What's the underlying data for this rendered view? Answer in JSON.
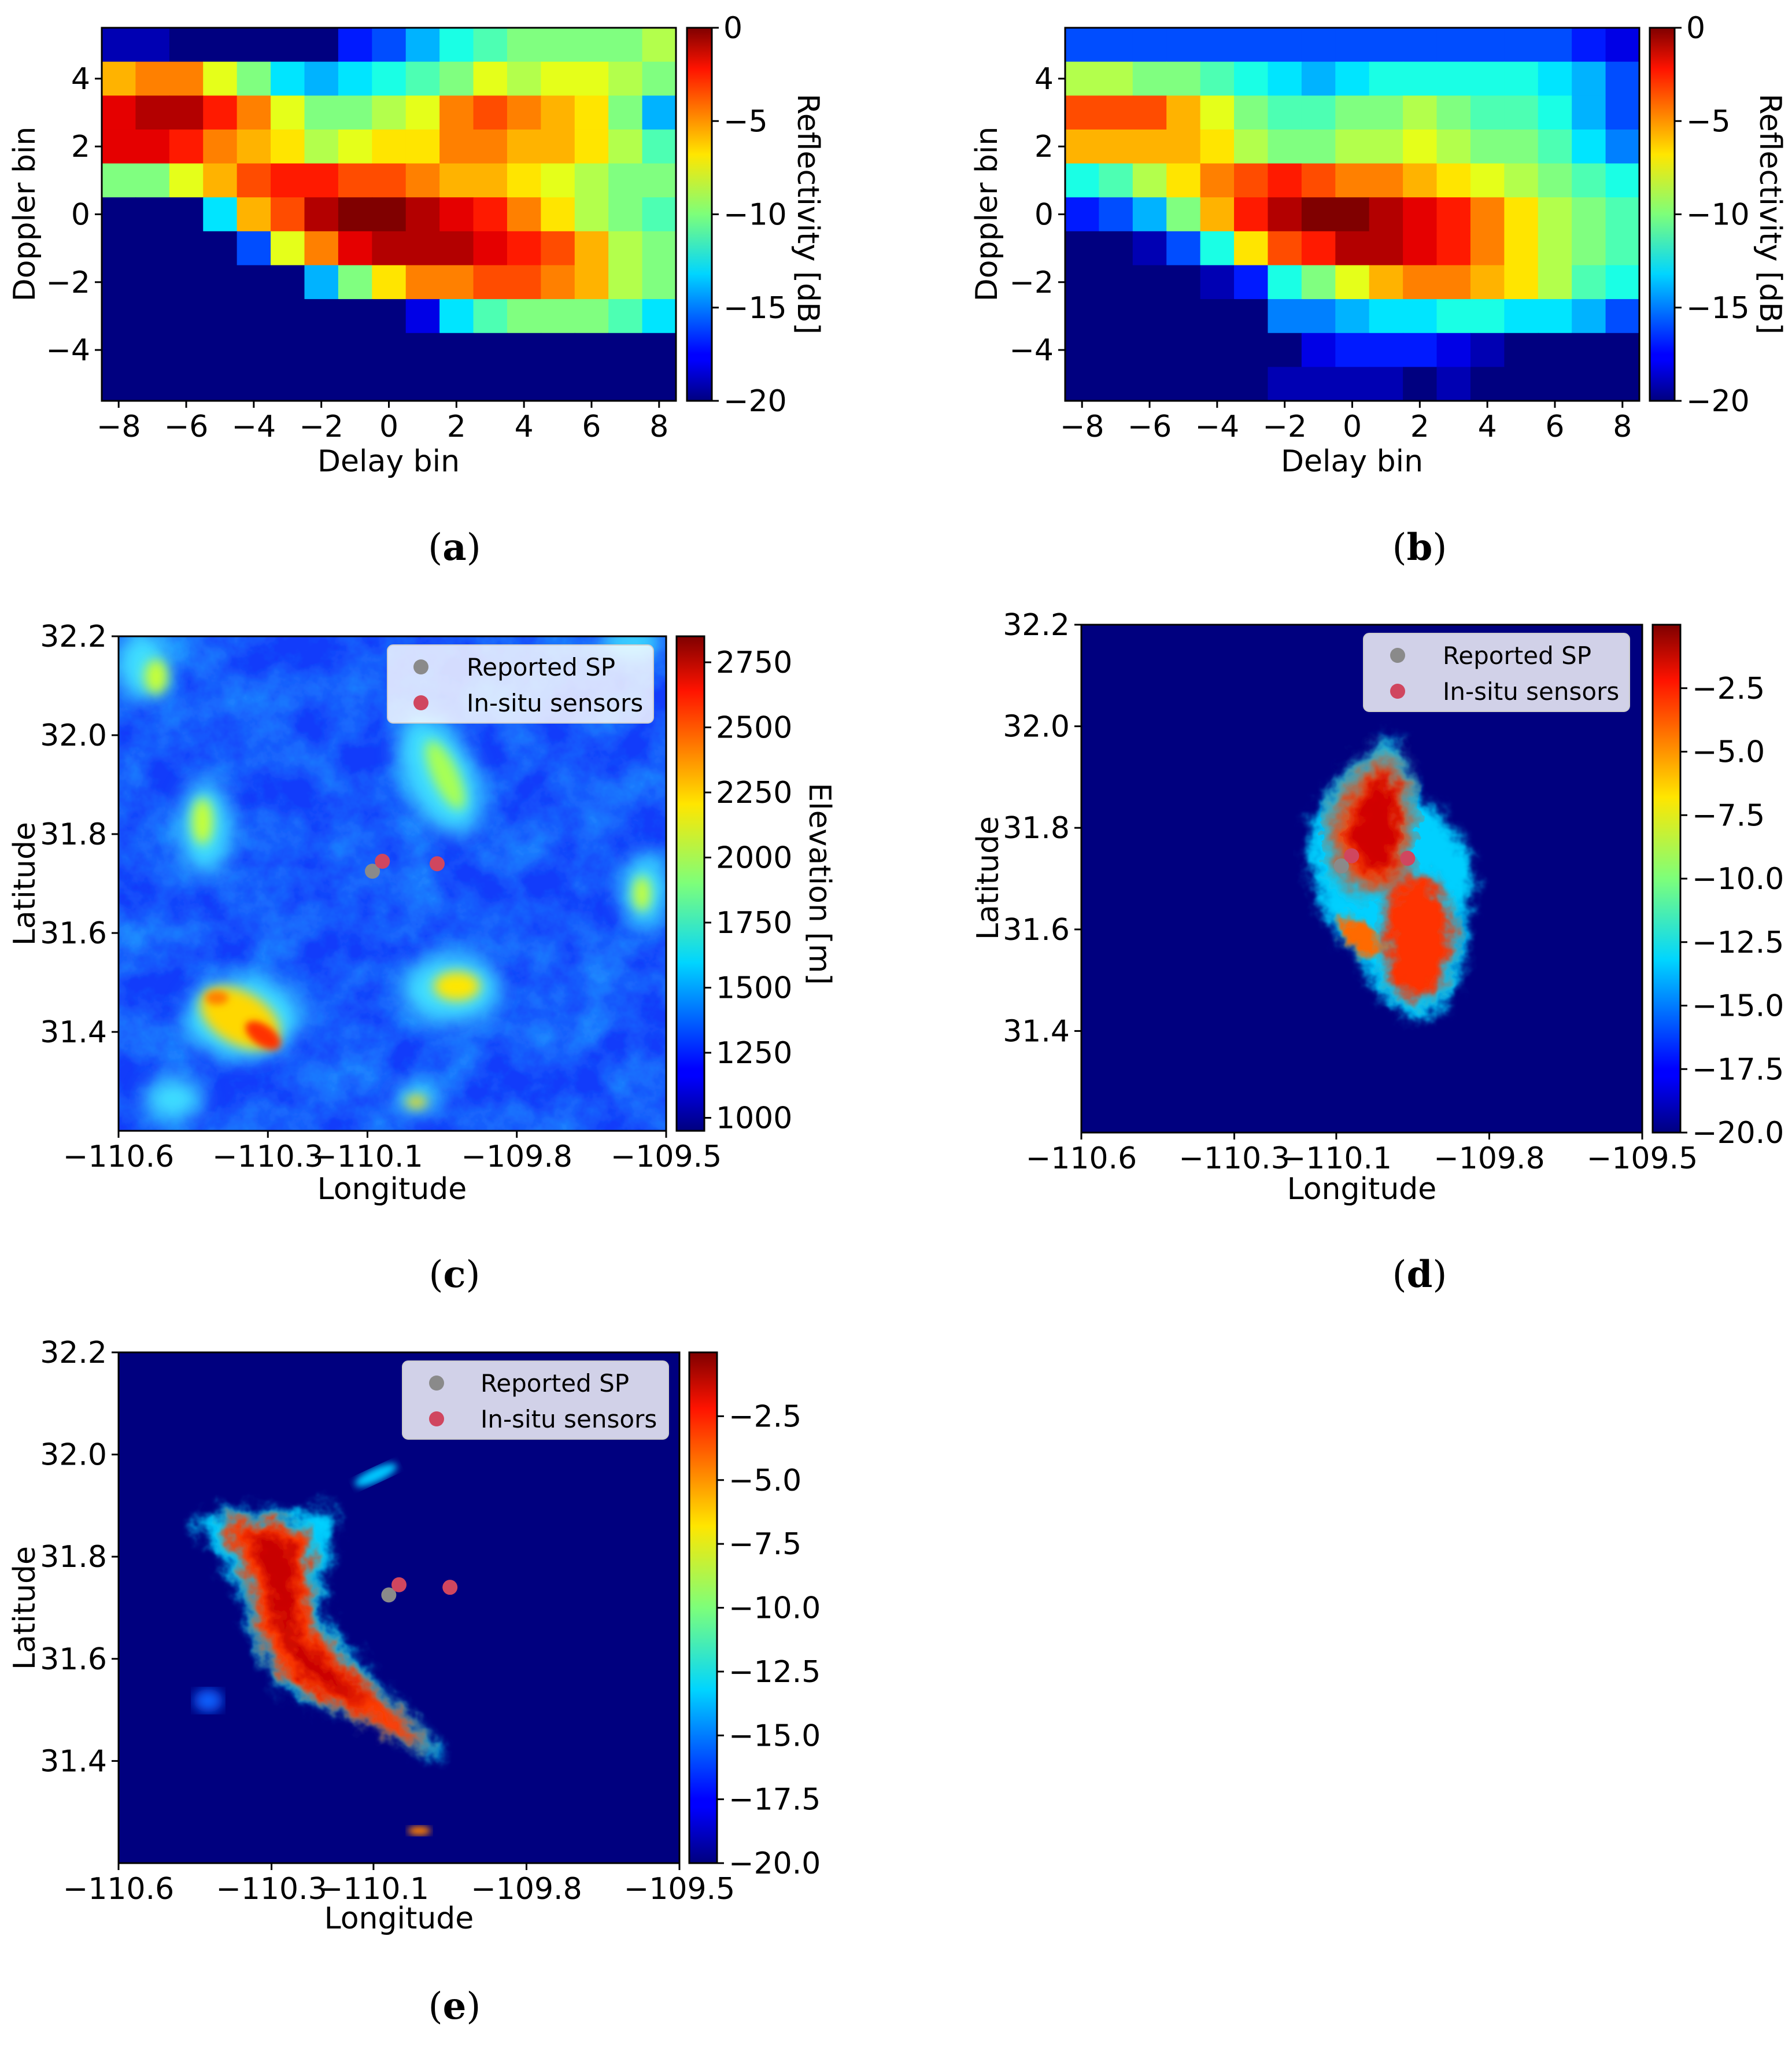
{
  "panels": {
    "a": {
      "label_open": "(",
      "label_letter": "a",
      "label_close": ")"
    },
    "b": {
      "label_open": "(",
      "label_letter": "b",
      "label_close": ")"
    },
    "c": {
      "label_open": "(",
      "label_letter": "c",
      "label_close": ")"
    },
    "d": {
      "label_open": "(",
      "label_letter": "d",
      "label_close": ")"
    },
    "e": {
      "label_open": "(",
      "label_letter": "e",
      "label_close": ")"
    }
  },
  "legend": {
    "reported_sp": "Reported SP",
    "insitu": "In-situ sensors"
  },
  "colors": {
    "reported_sp": "#8a8a8a",
    "insitu": "#d0465f",
    "background_low": "#00007f"
  },
  "chart_data": [
    {
      "id": "a",
      "type": "heatmap",
      "title": "",
      "xlabel": "Delay bin",
      "ylabel": "Doppler bin",
      "colorbar_label": "Reflectivity [dB]",
      "colormap": "jet",
      "xlim": [
        -8.5,
        8.5
      ],
      "ylim": [
        -5.5,
        5.5
      ],
      "clim": [
        -20,
        0
      ],
      "xticks": [
        "−8",
        "−6",
        "−4",
        "−2",
        "0",
        "2",
        "4",
        "6",
        "8"
      ],
      "yticks": [
        "4",
        "2",
        "0",
        "−2",
        "−4"
      ],
      "cticks": [
        "0",
        "−5",
        "−10",
        "−15",
        "−20"
      ],
      "x_bins": [
        -8,
        -7,
        -6,
        -5,
        -4,
        -3,
        -2,
        -1,
        0,
        1,
        2,
        3,
        4,
        5,
        6,
        7,
        8
      ],
      "y_bins": [
        5,
        4,
        3,
        2,
        1,
        0,
        -1,
        -2,
        -3,
        -4,
        -5
      ],
      "values": [
        [
          -19,
          -19,
          -20,
          -20,
          -20,
          -20,
          -20,
          -17,
          -16,
          -14,
          -12,
          -11,
          -10,
          -10,
          -10,
          -10,
          -9
        ],
        [
          -6,
          -5,
          -5,
          -8,
          -10,
          -13,
          -14,
          -13,
          -12,
          -11,
          -10,
          -8,
          -9,
          -8,
          -8,
          -9,
          -10
        ],
        [
          -2,
          -1,
          -1,
          -3,
          -5,
          -8,
          -10,
          -10,
          -9,
          -8,
          -5,
          -4,
          -5,
          -6,
          -7,
          -10,
          -14
        ],
        [
          -2,
          -2,
          -3,
          -5,
          -6,
          -7,
          -9,
          -8,
          -7,
          -7,
          -5,
          -5,
          -6,
          -6,
          -7,
          -9,
          -11
        ],
        [
          -10,
          -10,
          -8,
          -6,
          -4,
          -3,
          -3,
          -4,
          -4,
          -5,
          -6,
          -6,
          -7,
          -8,
          -9,
          -10,
          -10
        ],
        [
          -20,
          -20,
          -20,
          -13,
          -6,
          -4,
          -1,
          0,
          0,
          -1,
          -2,
          -3,
          -5,
          -7,
          -9,
          -10,
          -11
        ],
        [
          -20,
          -20,
          -20,
          -20,
          -16,
          -8,
          -5,
          -2,
          -1,
          -1,
          -1,
          -2,
          -3,
          -4,
          -6,
          -9,
          -10
        ],
        [
          -20,
          -20,
          -20,
          -20,
          -20,
          -20,
          -14,
          -10,
          -7,
          -5,
          -5,
          -4,
          -4,
          -5,
          -6,
          -9,
          -10
        ],
        [
          -20,
          -20,
          -20,
          -20,
          -20,
          -20,
          -20,
          -20,
          -20,
          -18,
          -13,
          -11,
          -10,
          -10,
          -10,
          -11,
          -13
        ],
        [
          -20,
          -20,
          -20,
          -20,
          -20,
          -20,
          -20,
          -20,
          -20,
          -20,
          -20,
          -20,
          -20,
          -20,
          -20,
          -20,
          -20
        ],
        [
          -20,
          -20,
          -20,
          -20,
          -20,
          -20,
          -20,
          -20,
          -20,
          -20,
          -20,
          -20,
          -20,
          -20,
          -20,
          -20,
          -20
        ]
      ]
    },
    {
      "id": "b",
      "type": "heatmap",
      "title": "",
      "xlabel": "Delay bin",
      "ylabel": "Doppler bin",
      "colorbar_label": "Reflectivity [dB]",
      "colormap": "jet",
      "xlim": [
        -8.5,
        8.5
      ],
      "ylim": [
        -5.5,
        5.5
      ],
      "clim": [
        -20,
        0
      ],
      "xticks": [
        "−8",
        "−6",
        "−4",
        "−2",
        "0",
        "2",
        "4",
        "6",
        "8"
      ],
      "yticks": [
        "4",
        "2",
        "0",
        "−2",
        "−4"
      ],
      "cticks": [
        "0",
        "−5",
        "−10",
        "−15",
        "−20"
      ],
      "x_bins": [
        -8,
        -7,
        -6,
        -5,
        -4,
        -3,
        -2,
        -1,
        0,
        1,
        2,
        3,
        4,
        5,
        6,
        7,
        8
      ],
      "y_bins": [
        5,
        4,
        3,
        2,
        1,
        0,
        -1,
        -2,
        -3,
        -4,
        -5
      ],
      "values": [
        [
          -16,
          -16,
          -16,
          -16,
          -16,
          -16,
          -16,
          -16,
          -16,
          -16,
          -16,
          -16,
          -16,
          -16,
          -16,
          -17,
          -18
        ],
        [
          -9,
          -9,
          -10,
          -10,
          -11,
          -12,
          -13,
          -14,
          -13,
          -12,
          -12,
          -12,
          -12,
          -12,
          -13,
          -14,
          -16
        ],
        [
          -4,
          -4,
          -4,
          -6,
          -8,
          -10,
          -11,
          -11,
          -10,
          -10,
          -9,
          -10,
          -11,
          -11,
          -12,
          -14,
          -16
        ],
        [
          -6,
          -6,
          -6,
          -6,
          -7,
          -9,
          -10,
          -10,
          -9,
          -9,
          -8,
          -9,
          -10,
          -10,
          -11,
          -13,
          -15
        ],
        [
          -12,
          -11,
          -9,
          -7,
          -5,
          -4,
          -3,
          -4,
          -5,
          -5,
          -6,
          -7,
          -8,
          -9,
          -10,
          -11,
          -12
        ],
        [
          -17,
          -16,
          -14,
          -10,
          -6,
          -3,
          -1,
          0,
          0,
          -1,
          -2,
          -3,
          -5,
          -7,
          -9,
          -10,
          -11
        ],
        [
          -20,
          -20,
          -19,
          -16,
          -12,
          -7,
          -4,
          -3,
          -1,
          -1,
          -2,
          -3,
          -5,
          -7,
          -9,
          -10,
          -11
        ],
        [
          -20,
          -20,
          -20,
          -20,
          -19,
          -17,
          -12,
          -10,
          -8,
          -6,
          -5,
          -5,
          -6,
          -7,
          -9,
          -11,
          -12
        ],
        [
          -20,
          -20,
          -20,
          -20,
          -20,
          -20,
          -15,
          -15,
          -14,
          -13,
          -13,
          -12,
          -12,
          -13,
          -13,
          -14,
          -16
        ],
        [
          -20,
          -20,
          -20,
          -20,
          -20,
          -20,
          -20,
          -18,
          -17,
          -17,
          -17,
          -18,
          -19,
          -20,
          -20,
          -20,
          -20
        ],
        [
          -20,
          -20,
          -20,
          -20,
          -20,
          -20,
          -19,
          -19,
          -19,
          -19,
          -20,
          -19,
          -20,
          -20,
          -20,
          -20,
          -20
        ]
      ]
    },
    {
      "id": "c",
      "type": "heatmap",
      "title": "",
      "xlabel": "Longitude",
      "ylabel": "Latitude",
      "colorbar_label": "Elevation [m]",
      "colormap": "jet",
      "xlim": [
        -110.6,
        -109.5
      ],
      "ylim": [
        31.2,
        32.2
      ],
      "clim": [
        950,
        2850
      ],
      "xticks": [
        "−110.6",
        "−110.3",
        "−110.1",
        "−109.8",
        "−109.5"
      ],
      "yticks": [
        "32.2",
        "32.0",
        "31.8",
        "31.6",
        "31.4"
      ],
      "cticks": [
        "2750",
        "2500",
        "2250",
        "2000",
        "1750",
        "1500",
        "1250",
        "1000"
      ],
      "reported_sp": [
        {
          "lon": -110.09,
          "lat": 31.725
        }
      ],
      "insitu_sensors": [
        {
          "lon": -110.07,
          "lat": 31.745
        },
        {
          "lon": -109.96,
          "lat": 31.74
        }
      ]
    },
    {
      "id": "d",
      "type": "heatmap",
      "title": "",
      "xlabel": "Longitude",
      "ylabel": "Latitude",
      "colorbar_label": "",
      "colormap": "jet",
      "xlim": [
        -110.6,
        -109.5
      ],
      "ylim": [
        31.2,
        32.2
      ],
      "clim": [
        -20,
        0
      ],
      "xticks": [
        "−110.6",
        "−110.3",
        "−110.1",
        "−109.8",
        "−109.5"
      ],
      "yticks": [
        "32.2",
        "32.0",
        "31.8",
        "31.6",
        "31.4"
      ],
      "cticks": [
        "−2.5",
        "−5.0",
        "−7.5",
        "−10.0",
        "−12.5",
        "−15.0",
        "−17.5",
        "−20.0"
      ],
      "reported_sp": [
        {
          "lon": -110.09,
          "lat": 31.725
        }
      ],
      "insitu_sensors": [
        {
          "lon": -110.07,
          "lat": 31.745
        },
        {
          "lon": -109.96,
          "lat": 31.74
        }
      ]
    },
    {
      "id": "e",
      "type": "heatmap",
      "title": "",
      "xlabel": "Longitude",
      "ylabel": "Latitude",
      "colorbar_label": "",
      "colormap": "jet",
      "xlim": [
        -110.6,
        -109.5
      ],
      "ylim": [
        31.2,
        32.2
      ],
      "clim": [
        -20,
        0
      ],
      "xticks": [
        "−110.6",
        "−110.3",
        "−110.1",
        "−109.8",
        "−109.5"
      ],
      "yticks": [
        "32.2",
        "32.0",
        "31.8",
        "31.6",
        "31.4"
      ],
      "cticks": [
        "−2.5",
        "−5.0",
        "−7.5",
        "−10.0",
        "−12.5",
        "−15.0",
        "−17.5",
        "−20.0"
      ],
      "reported_sp": [
        {
          "lon": -110.07,
          "lat": 31.725
        }
      ],
      "insitu_sensors": [
        {
          "lon": -110.05,
          "lat": 31.745
        },
        {
          "lon": -109.95,
          "lat": 31.74
        }
      ]
    }
  ]
}
